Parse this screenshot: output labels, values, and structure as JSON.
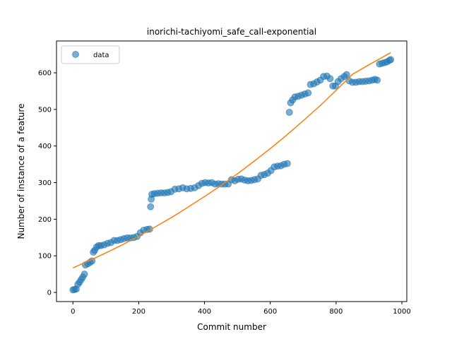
{
  "chart_data": {
    "type": "scatter",
    "title": "inorichi-tachiyomi_safe_call-exponential",
    "xlabel": "Commit number",
    "ylabel": "Number of instance of a feature",
    "xlim": [
      -50,
      1015
    ],
    "ylim": [
      -25,
      687
    ],
    "xticks": [
      0,
      200,
      400,
      600,
      800,
      1000
    ],
    "yticks": [
      0,
      100,
      200,
      300,
      400,
      500,
      600
    ],
    "grid": false,
    "legend": {
      "placement": "upper-left",
      "entries": [
        "data"
      ]
    },
    "colors": {
      "data": "#1f77b4",
      "fit": "#ff7f0e"
    },
    "series": [
      {
        "name": "data",
        "kind": "scatter",
        "points": [
          [
            0,
            7
          ],
          [
            5,
            8
          ],
          [
            10,
            9
          ],
          [
            15,
            22
          ],
          [
            20,
            28
          ],
          [
            25,
            35
          ],
          [
            30,
            42
          ],
          [
            35,
            50
          ],
          [
            38,
            75
          ],
          [
            45,
            78
          ],
          [
            52,
            82
          ],
          [
            58,
            86
          ],
          [
            62,
            110
          ],
          [
            66,
            115
          ],
          [
            72,
            124
          ],
          [
            78,
            128
          ],
          [
            85,
            128
          ],
          [
            95,
            130
          ],
          [
            105,
            134
          ],
          [
            115,
            136
          ],
          [
            125,
            142
          ],
          [
            135,
            142
          ],
          [
            145,
            144
          ],
          [
            155,
            147
          ],
          [
            165,
            149
          ],
          [
            175,
            149
          ],
          [
            185,
            150
          ],
          [
            195,
            153
          ],
          [
            205,
            163
          ],
          [
            215,
            170
          ],
          [
            225,
            172
          ],
          [
            233,
            173
          ],
          [
            236,
            234
          ],
          [
            238,
            255
          ],
          [
            240,
            268
          ],
          [
            248,
            270
          ],
          [
            258,
            271
          ],
          [
            268,
            272
          ],
          [
            278,
            272
          ],
          [
            288,
            273
          ],
          [
            298,
            275
          ],
          [
            310,
            282
          ],
          [
            322,
            283
          ],
          [
            334,
            286
          ],
          [
            346,
            283
          ],
          [
            358,
            284
          ],
          [
            370,
            286
          ],
          [
            382,
            292
          ],
          [
            392,
            298
          ],
          [
            402,
            300
          ],
          [
            412,
            299
          ],
          [
            422,
            300
          ],
          [
            432,
            296
          ],
          [
            442,
            297
          ],
          [
            452,
            296
          ],
          [
            462,
            296
          ],
          [
            472,
            296
          ],
          [
            482,
            308
          ],
          [
            492,
            305
          ],
          [
            502,
            309
          ],
          [
            512,
            310
          ],
          [
            522,
            307
          ],
          [
            532,
            305
          ],
          [
            542,
            306
          ],
          [
            552,
            308
          ],
          [
            562,
            310
          ],
          [
            572,
            320
          ],
          [
            582,
            322
          ],
          [
            592,
            326
          ],
          [
            602,
            333
          ],
          [
            612,
            343
          ],
          [
            622,
            345
          ],
          [
            632,
            346
          ],
          [
            642,
            350
          ],
          [
            652,
            352
          ],
          [
            658,
            492
          ],
          [
            662,
            518
          ],
          [
            668,
            526
          ],
          [
            675,
            534
          ],
          [
            685,
            536
          ],
          [
            695,
            539
          ],
          [
            705,
            542
          ],
          [
            715,
            545
          ],
          [
            722,
            568
          ],
          [
            732,
            570
          ],
          [
            742,
            575
          ],
          [
            752,
            580
          ],
          [
            762,
            590
          ],
          [
            772,
            591
          ],
          [
            782,
            584
          ],
          [
            790,
            564
          ],
          [
            798,
            564
          ],
          [
            806,
            576
          ],
          [
            815,
            584
          ],
          [
            825,
            590
          ],
          [
            832,
            595
          ],
          [
            840,
            578
          ],
          [
            850,
            574
          ],
          [
            860,
            574
          ],
          [
            870,
            576
          ],
          [
            880,
            576
          ],
          [
            890,
            577
          ],
          [
            900,
            578
          ],
          [
            910,
            580
          ],
          [
            918,
            582
          ],
          [
            925,
            580
          ],
          [
            932,
            624
          ],
          [
            940,
            626
          ],
          [
            948,
            628
          ],
          [
            955,
            630
          ],
          [
            962,
            634
          ],
          [
            966,
            636
          ]
        ]
      },
      {
        "name": "",
        "kind": "line",
        "points": [
          [
            0,
            67
          ],
          [
            50,
            87
          ],
          [
            100,
            108
          ],
          [
            150,
            130
          ],
          [
            200,
            154
          ],
          [
            250,
            179
          ],
          [
            300,
            205
          ],
          [
            350,
            233
          ],
          [
            400,
            262
          ],
          [
            450,
            292
          ],
          [
            500,
            324
          ],
          [
            550,
            358
          ],
          [
            600,
            393
          ],
          [
            650,
            430
          ],
          [
            700,
            469
          ],
          [
            750,
            509
          ],
          [
            800,
            552
          ],
          [
            850,
            596
          ],
          [
            900,
            622
          ],
          [
            966,
            655
          ]
        ]
      }
    ]
  }
}
